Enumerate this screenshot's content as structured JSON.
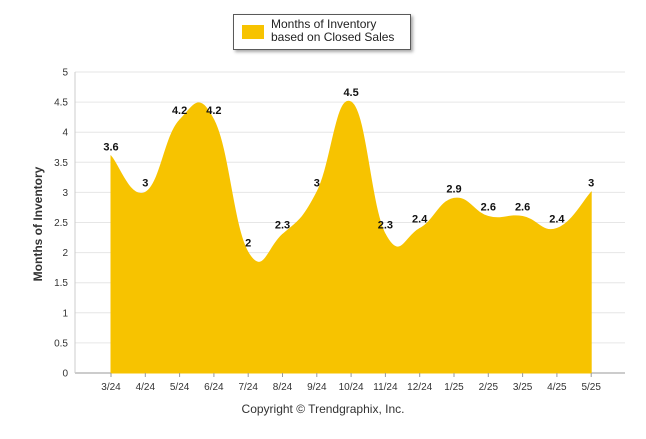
{
  "chart_data": {
    "type": "area",
    "categories": [
      "3/24",
      "4/24",
      "5/24",
      "6/24",
      "7/24",
      "8/24",
      "9/24",
      "10/24",
      "11/24",
      "12/24",
      "1/25",
      "2/25",
      "3/25",
      "4/25",
      "5/25"
    ],
    "series": [
      {
        "name": "Months of Inventory based on Closed Sales",
        "values": [
          3.6,
          3,
          4.2,
          4.2,
          2,
          2.3,
          3,
          4.5,
          2.3,
          2.4,
          2.9,
          2.6,
          2.6,
          2.4,
          3
        ],
        "color": "#f7c300"
      }
    ],
    "ylabel": "Months of Inventory",
    "xlabel": "",
    "ylim": [
      0,
      5
    ],
    "yticks": [
      "0",
      "0.5",
      "1",
      "1.5",
      "2",
      "2.5",
      "3",
      "3.5",
      "4",
      "4.5",
      "5"
    ],
    "data_labels": [
      "3.6",
      "3",
      "4.2",
      "4.2",
      "2",
      "2.3",
      "3",
      "4.5",
      "2.3",
      "2.4",
      "2.9",
      "2.6",
      "2.6",
      "2.4",
      "3"
    ],
    "grid": true,
    "legend_position": "top-center",
    "smooth": true
  },
  "legend": {
    "label": "Months of Inventory based on Closed Sales",
    "color": "#f7c300"
  },
  "footer": {
    "copyright": "Copyright © Trendgraphix, Inc."
  }
}
